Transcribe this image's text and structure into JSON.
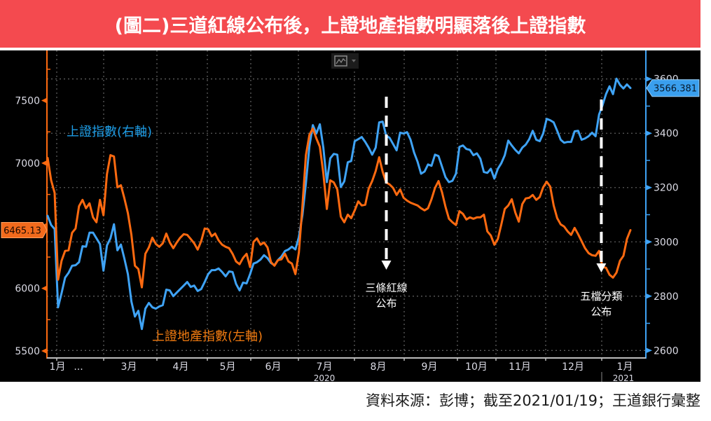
{
  "chart_data": {
    "type": "line",
    "title": "(圖二)三道紅線公布後，上證地產指數明顯落後上證指數",
    "x_range": [
      "2020-01-20",
      "2021-01-19"
    ],
    "x_axis": {
      "month_labels": [
        "1月",
        "...",
        "3月",
        "4月",
        "5月",
        "6月",
        "7月",
        "8月",
        "9月",
        "10月",
        "11月",
        "12月",
        "1月"
      ],
      "year_labels": [
        "2020",
        "2021"
      ]
    },
    "left_axis": {
      "tick_labels": [
        "7500",
        "7000",
        "6000",
        "5500"
      ],
      "ylim": [
        5450,
        7900
      ],
      "color": "#ff6a10"
    },
    "right_axis": {
      "tick_labels": [
        "3600",
        "3400",
        "3200",
        "3000",
        "2800",
        "2600"
      ],
      "ylim": [
        2575,
        3705
      ],
      "color": "#3fa3f5"
    },
    "grid": true,
    "series": [
      {
        "name": "上證指數(右軸)",
        "axis": "right",
        "color": "#3fa3f5",
        "legend_color": "#1e9de6",
        "last_value": "3566.381",
        "values": [
          3096,
          3062,
          3047,
          2759,
          2811,
          2868,
          2886,
          2912,
          2914,
          2925,
          2984,
          2982,
          3034,
          3034,
          3013,
          2992,
          2894,
          2987,
          3013,
          3065,
          2969,
          2990,
          2938,
          2881,
          2780,
          2725,
          2746,
          2679,
          2754,
          2775,
          2759,
          2754,
          2762,
          2767,
          2824,
          2821,
          2800,
          2813,
          2826,
          2839,
          2852,
          2834,
          2839,
          2819,
          2826,
          2852,
          2881,
          2896,
          2896,
          2902,
          2889,
          2873,
          2891,
          2889,
          2845,
          2821,
          2850,
          2847,
          2881,
          2920,
          2925,
          2935,
          2951,
          2940,
          2922,
          2914,
          2933,
          2946,
          2966,
          2972,
          2982,
          2972,
          3018,
          3098,
          3215,
          3352,
          3430,
          3399,
          3433,
          3347,
          3220,
          3308,
          3324,
          3321,
          3202,
          3223,
          3293,
          3298,
          3371,
          3378,
          3386,
          3368,
          3347,
          3321,
          3347,
          3440,
          3443,
          3391,
          3383,
          3360,
          3337,
          3402,
          3399,
          3404,
          3376,
          3329,
          3295,
          3251,
          3259,
          3285,
          3280,
          3321,
          3316,
          3277,
          3238,
          3220,
          3225,
          3251,
          3350,
          3355,
          3342,
          3339,
          3319,
          3326,
          3306,
          3257,
          3254,
          3269,
          3233,
          3269,
          3290,
          3319,
          3373,
          3355,
          3339,
          3326,
          3347,
          3358,
          3378,
          3409,
          3376,
          3371,
          3399,
          3453,
          3448,
          3440,
          3409,
          3376,
          3365,
          3368,
          3368,
          3407,
          3409,
          3376,
          3381,
          3389,
          3402,
          3389,
          3469,
          3503,
          3544,
          3573,
          3544,
          3601,
          3578,
          3565,
          3580,
          3566.381
        ]
      },
      {
        "name": "上證地產指數(左軸)",
        "axis": "left",
        "color": "#ff6a10",
        "legend_color": "#f07a10",
        "last_value": "6465.13",
        "values": [
          7042,
          6863,
          6763,
          6070,
          6221,
          6299,
          6304,
          6444,
          6478,
          6656,
          6707,
          6640,
          6679,
          6567,
          6528,
          6707,
          6584,
          6913,
          7064,
          7053,
          6807,
          6824,
          6718,
          6600,
          6427,
          6181,
          6154,
          6008,
          6276,
          6327,
          6405,
          6355,
          6332,
          6360,
          6438,
          6366,
          6321,
          6366,
          6405,
          6433,
          6427,
          6394,
          6360,
          6310,
          6377,
          6478,
          6472,
          6416,
          6438,
          6383,
          6349,
          6332,
          6321,
          6276,
          6215,
          6193,
          6243,
          6276,
          6170,
          6371,
          6399,
          6349,
          6366,
          6327,
          6209,
          6181,
          6226,
          6232,
          6276,
          6215,
          6198,
          6114,
          6288,
          6656,
          7064,
          7226,
          7277,
          7198,
          7131,
          6919,
          6634,
          6863,
          6846,
          6790,
          6573,
          6528,
          6589,
          6561,
          6623,
          6695,
          6662,
          6668,
          6796,
          6857,
          6936,
          7047,
          6930,
          6846,
          6830,
          6802,
          6746,
          6790,
          6723,
          6701,
          6684,
          6673,
          6662,
          6640,
          6623,
          6640,
          6712,
          6802,
          6857,
          6768,
          6651,
          6556,
          6528,
          6506,
          6617,
          6595,
          6550,
          6567,
          6556,
          6567,
          6567,
          6589,
          6455,
          6422,
          6349,
          6394,
          6511,
          6634,
          6662,
          6712,
          6606,
          6533,
          6673,
          6718,
          6723,
          6746,
          6707,
          6729,
          6807,
          6852,
          6813,
          6662,
          6561,
          6511,
          6494,
          6455,
          6427,
          6483,
          6433,
          6377,
          6321,
          6282,
          6265,
          6260,
          6299,
          6170,
          6165,
          6109,
          6086,
          6126,
          6221,
          6260,
          6394,
          6465.13
        ]
      }
    ],
    "annotations": [
      {
        "date": "2020-08-20",
        "lines": [
          "三條紅線",
          "公布"
        ]
      },
      {
        "date": "2020-12-31",
        "lines": [
          "五檔分類",
          "公布"
        ]
      }
    ]
  },
  "toolbar": {
    "chart_type_icon": "line-chart-icon",
    "dropdown_icon": "caret-down-icon"
  },
  "footer": {
    "source": "資料來源：彭博；截至2021/01/19；王道銀行彙整"
  }
}
